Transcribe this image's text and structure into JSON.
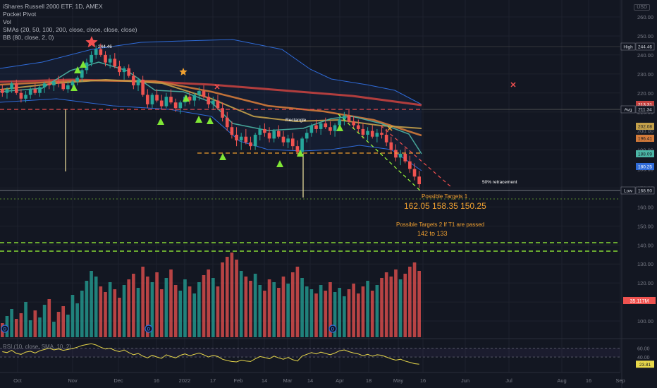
{
  "header": {
    "title": "iShares Russell 2000 ETF, 1D, AMEX",
    "indicators": [
      "Pocket Pivot",
      "Vol",
      "SMAs (20, 50, 100, 200, close, close, close, close)",
      "BB (80, close, 2, 0)"
    ],
    "currency": "USD"
  },
  "rsi_legend": "RSI (10, close, SMA, 10, 2)",
  "colors": {
    "background": "#131722",
    "up": "#26a69a",
    "down": "#ef5350",
    "sma20": "#4cb6a6",
    "sma50": "#c3a04a",
    "sma100": "#d37a3a",
    "sma200": "#c2413f",
    "bb": "#2f6bd8",
    "annotation_orange": "#f0a030",
    "pivot_green": "#7fe636",
    "dashed_red": "#f25050",
    "dashed_green": "#9dff3a"
  },
  "chart_data": {
    "type": "candlestick",
    "price_axis": {
      "ticks": [
        100,
        110,
        120,
        130,
        140,
        150,
        160,
        170,
        180,
        190,
        200,
        210,
        220,
        230,
        240,
        250,
        260
      ],
      "labels": [
        "100.00",
        "110.00",
        "120.00",
        "130.00",
        "140.00",
        "150.00",
        "160.00",
        "170.00",
        "180.00",
        "190.00",
        "200.00",
        "210.00",
        "220.00",
        "230.00",
        "240.00",
        "250.00",
        "260.00"
      ],
      "range": [
        90,
        265
      ]
    },
    "time_axis": {
      "labels": [
        "Oct",
        "Nov",
        "Dec",
        "16",
        "2022",
        "17",
        "Feb",
        "14",
        "Mar",
        "14",
        "Apr",
        "18",
        "May",
        "16",
        "Jun",
        "Jul",
        "Aug",
        "16",
        "Sep"
      ]
    },
    "price_tags": [
      {
        "label": "High",
        "value": "244.46",
        "type": "high"
      },
      {
        "label": "",
        "value": "213.31",
        "type": "sma200"
      },
      {
        "label": "Avg",
        "value": "211.34",
        "type": "avg"
      },
      {
        "label": "",
        "value": "202.08",
        "type": "sma50"
      },
      {
        "label": "",
        "value": "196.41",
        "type": "sma100"
      },
      {
        "label": "",
        "value": "188.09",
        "type": "sma20"
      },
      {
        "label": "",
        "value": "180.25",
        "type": "bb"
      },
      {
        "label": "Low",
        "value": "168.90",
        "type": "low"
      }
    ],
    "volume_tag": "35.117M",
    "rsi_axis": {
      "ticks": [
        60,
        40
      ],
      "labels": [
        "60.00",
        "40.00"
      ],
      "current": "23.81",
      "range": [
        10,
        75
      ]
    },
    "annotations": {
      "high_label": "244.46",
      "rectangle_label": "Rectangle",
      "retracement_label": "50% retracement",
      "targets1_title": "Possible Targets 1",
      "targets1_values": "162.05   158.35   150.25",
      "targets2_title": "Possible Targets 2 If T1 are passed",
      "targets2_values": "142 to 133"
    },
    "levels": {
      "avg": 211.34,
      "low": 168.9,
      "rectangle_low": 191.0,
      "target_line": 166.0,
      "green_upper": 141.0,
      "green_lower": 136.0
    },
    "x_label_positions": [
      "Oct",
      "Nov",
      "Dec",
      "16",
      "2022",
      "17",
      "Feb",
      "14",
      "Mar",
      "14",
      "Apr",
      "18",
      "May",
      "16",
      "Jun",
      "Jul",
      "Aug",
      "16",
      "Sep"
    ],
    "candles": [
      [
        222,
        224,
        218,
        220
      ],
      [
        220,
        223,
        217,
        222
      ],
      [
        222,
        226,
        220,
        225
      ],
      [
        225,
        227,
        219,
        220
      ],
      [
        220,
        222,
        215,
        217
      ],
      [
        217,
        221,
        215,
        219
      ],
      [
        219,
        223,
        217,
        222
      ],
      [
        222,
        225,
        219,
        220
      ],
      [
        220,
        224,
        218,
        223
      ],
      [
        223,
        226,
        220,
        225
      ],
      [
        225,
        228,
        222,
        224
      ],
      [
        224,
        227,
        221,
        226
      ],
      [
        226,
        229,
        223,
        225
      ],
      [
        225,
        228,
        221,
        222
      ],
      [
        222,
        226,
        220,
        224
      ],
      [
        224,
        227,
        222,
        226
      ],
      [
        226,
        229,
        224,
        228
      ],
      [
        228,
        233,
        226,
        232
      ],
      [
        232,
        238,
        230,
        236
      ],
      [
        236,
        242,
        234,
        240
      ],
      [
        240,
        245,
        238,
        243
      ],
      [
        243,
        246,
        239,
        240
      ],
      [
        240,
        242,
        234,
        236
      ],
      [
        236,
        240,
        233,
        238
      ],
      [
        238,
        241,
        233,
        234
      ],
      [
        234,
        237,
        229,
        231
      ],
      [
        231,
        234,
        227,
        233
      ],
      [
        233,
        235,
        228,
        229
      ],
      [
        229,
        231,
        222,
        224
      ],
      [
        224,
        228,
        221,
        227
      ],
      [
        227,
        229,
        218,
        219
      ],
      [
        219,
        222,
        212,
        214
      ],
      [
        214,
        220,
        212,
        219
      ],
      [
        219,
        222,
        215,
        216
      ],
      [
        216,
        219,
        211,
        213
      ],
      [
        213,
        220,
        212,
        218
      ],
      [
        218,
        222,
        214,
        215
      ],
      [
        215,
        217,
        210,
        212
      ],
      [
        212,
        216,
        209,
        215
      ],
      [
        215,
        219,
        213,
        218
      ],
      [
        218,
        221,
        214,
        216
      ],
      [
        216,
        220,
        213,
        219
      ],
      [
        219,
        223,
        216,
        221
      ],
      [
        221,
        224,
        217,
        218
      ],
      [
        218,
        220,
        212,
        214
      ],
      [
        214,
        218,
        211,
        216
      ],
      [
        216,
        219,
        211,
        212
      ],
      [
        212,
        215,
        205,
        207
      ],
      [
        207,
        210,
        200,
        202
      ],
      [
        202,
        205,
        196,
        198
      ],
      [
        198,
        202,
        192,
        195
      ],
      [
        195,
        199,
        190,
        197
      ],
      [
        197,
        201,
        193,
        194
      ],
      [
        194,
        197,
        190,
        192
      ],
      [
        192,
        199,
        190,
        198
      ],
      [
        198,
        203,
        195,
        201
      ],
      [
        201,
        204,
        197,
        199
      ],
      [
        199,
        202,
        194,
        196
      ],
      [
        196,
        201,
        194,
        200
      ],
      [
        200,
        203,
        196,
        197
      ],
      [
        197,
        200,
        192,
        194
      ],
      [
        194,
        198,
        191,
        196
      ],
      [
        196,
        199,
        190,
        192
      ],
      [
        192,
        195,
        187,
        189
      ],
      [
        189,
        197,
        188,
        196
      ],
      [
        196,
        201,
        194,
        199
      ],
      [
        199,
        204,
        197,
        203
      ],
      [
        203,
        206,
        199,
        201
      ],
      [
        201,
        205,
        198,
        204
      ],
      [
        204,
        207,
        201,
        202
      ],
      [
        202,
        205,
        198,
        200
      ],
      [
        200,
        204,
        197,
        203
      ],
      [
        203,
        208,
        201,
        206
      ],
      [
        206,
        210,
        203,
        208
      ],
      [
        208,
        211,
        204,
        205
      ],
      [
        205,
        208,
        201,
        203
      ],
      [
        203,
        206,
        199,
        201
      ],
      [
        201,
        204,
        196,
        198
      ],
      [
        198,
        202,
        195,
        200
      ],
      [
        200,
        203,
        196,
        197
      ],
      [
        197,
        201,
        194,
        199
      ],
      [
        199,
        203,
        196,
        198
      ],
      [
        198,
        201,
        192,
        194
      ],
      [
        194,
        197,
        188,
        190
      ],
      [
        190,
        193,
        184,
        186
      ],
      [
        186,
        190,
        182,
        188
      ],
      [
        188,
        191,
        183,
        184
      ],
      [
        184,
        187,
        178,
        180
      ],
      [
        180,
        183,
        174,
        176
      ],
      [
        176,
        179,
        170,
        172
      ]
    ],
    "volumes": [
      95,
      100,
      105,
      98,
      102,
      110,
      97,
      104,
      99,
      108,
      112,
      96,
      103,
      107,
      101,
      115,
      109,
      118,
      125,
      132,
      128,
      121,
      117,
      124,
      119,
      113,
      122,
      126,
      130,
      120,
      135,
      128,
      124,
      131,
      119,
      127,
      133,
      122,
      118,
      126,
      121,
      116,
      124,
      129,
      133,
      127,
      121,
      138,
      142,
      145,
      140,
      132,
      128,
      125,
      130,
      122,
      118,
      126,
      124,
      120,
      128,
      123,
      131,
      135,
      127,
      121,
      119,
      116,
      122,
      118,
      124,
      117,
      120,
      114,
      119,
      123,
      116,
      121,
      125,
      118,
      122,
      127,
      131,
      128,
      133,
      126,
      130,
      135,
      138,
      132
    ],
    "rsi": [
      52,
      50,
      55,
      48,
      46,
      51,
      53,
      49,
      54,
      57,
      60,
      56,
      58,
      55,
      57,
      59,
      62,
      66,
      68,
      70,
      67,
      62,
      58,
      60,
      55,
      52,
      56,
      50,
      45,
      48,
      42,
      38,
      44,
      40,
      37,
      45,
      41,
      38,
      44,
      47,
      43,
      46,
      49,
      45,
      40,
      44,
      41,
      35,
      32,
      30,
      29,
      33,
      31,
      30,
      36,
      41,
      39,
      36,
      42,
      38,
      35,
      39,
      34,
      31,
      42,
      46,
      50,
      47,
      51,
      48,
      45,
      49,
      54,
      56,
      52,
      49,
      47,
      43,
      46,
      42,
      45,
      44,
      40,
      36,
      33,
      35,
      31,
      28,
      25,
      24
    ]
  }
}
